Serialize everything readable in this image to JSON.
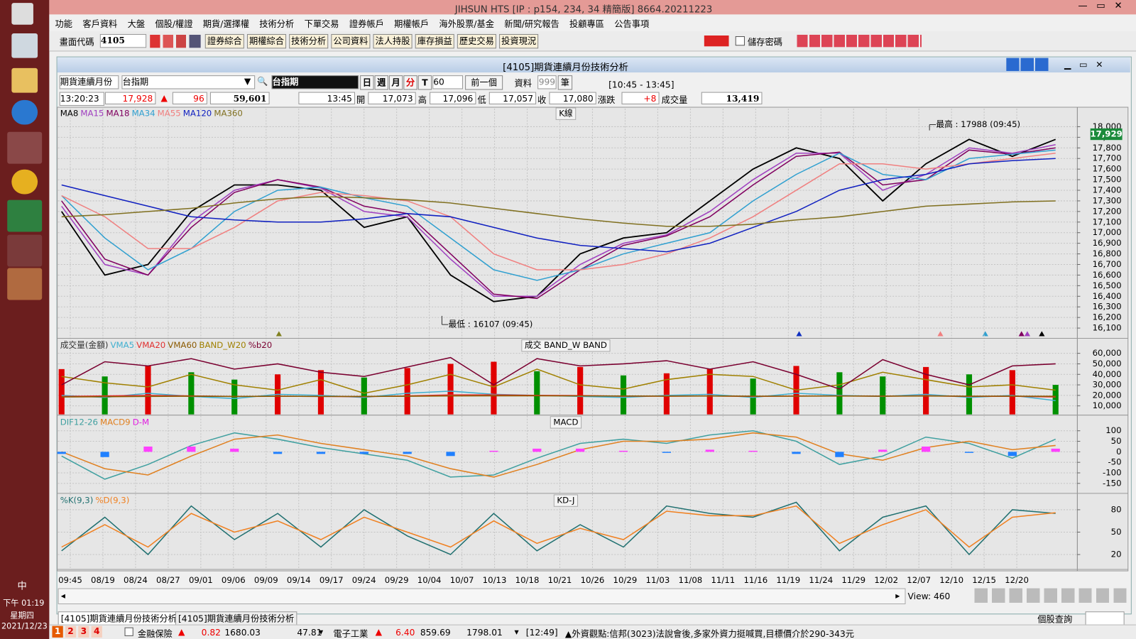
{
  "window": {
    "title": "JIHSUN HTS    [IP : p154, 234, 34 精簡版] 8664.20211223"
  },
  "menu": [
    "功能",
    "客戶資料",
    "大盤",
    "個股/權證",
    "期貨/選擇權",
    "技術分析",
    "下單交易",
    "證券帳戶",
    "期權帳戶",
    "海外股票/基金",
    "新聞/研究報告",
    "投顧專區",
    "公告事項"
  ],
  "toolbar": {
    "code_label": "畫面代碼",
    "code": "4105",
    "buttons": [
      "證券綜合",
      "期權綜合",
      "技術分析",
      "公司資料",
      "法人持股",
      "庫存損益",
      "歷史交易",
      "投資現況"
    ],
    "save_password": "儲存密碼"
  },
  "subwindow": {
    "title": "[4105]期貨連續月份技術分析"
  },
  "controls": {
    "product_type": "期貨連續月份",
    "product": "台指期",
    "symbol": "台指期",
    "periods": [
      "日",
      "週",
      "月",
      "分",
      "T"
    ],
    "minutes": "60",
    "prev": "前一個",
    "data_label": "資料",
    "data_count": "999",
    "data_unit": "筆",
    "session": "[10:45 - 13:45]"
  },
  "quote": {
    "time": "13:20:23",
    "price": "17,928",
    "change": "96",
    "volume": "59,601",
    "bar_time": "13:45",
    "open_label": "開",
    "open": "17,073",
    "high_label": "高",
    "high": "17,096",
    "low_label": "低",
    "low": "17,057",
    "close_label": "收",
    "close": "17,080",
    "change_label": "漲跌",
    "bar_change": "+8",
    "volume_label": "成交量",
    "bar_volume": "13,419"
  },
  "chart_data": [
    {
      "type": "line",
      "title": "K線",
      "ylim": [
        16010,
        18170
      ],
      "yticks": [
        {
          "value": 18000,
          "label": "18,000"
        },
        {
          "value": 17900,
          "label": "17,900"
        },
        {
          "value": 17800,
          "label": "17,800"
        },
        {
          "value": 17700,
          "label": "17,700"
        },
        {
          "value": 17600,
          "label": "17,600"
        },
        {
          "value": 17500,
          "label": "17,500"
        },
        {
          "value": 17400,
          "label": "17,400"
        },
        {
          "value": 17300,
          "label": "17,300"
        },
        {
          "value": 17200,
          "label": "17,200"
        },
        {
          "value": 17100,
          "label": "17,100"
        },
        {
          "value": 17000,
          "label": "17,000"
        },
        {
          "value": 16900,
          "label": "16,900"
        },
        {
          "value": 16800,
          "label": "16,800"
        },
        {
          "value": 16700,
          "label": "16,700"
        },
        {
          "value": 16600,
          "label": "16,600"
        },
        {
          "value": 16500,
          "label": "16,500"
        },
        {
          "value": 16400,
          "label": "16,400"
        },
        {
          "value": 16300,
          "label": "16,300"
        },
        {
          "value": 16200,
          "label": "16,200"
        },
        {
          "value": 16100,
          "label": "16,100"
        }
      ],
      "annotations": [
        "最高 : 17988 (09:45)",
        "最低 : 16107 (09:45)"
      ],
      "last_price": {
        "value": 17929,
        "label": "17,929"
      },
      "series": [
        {
          "name": "MA8",
          "color": "#000000",
          "values": [
            17200,
            16600,
            16700,
            17200,
            17450,
            17450,
            17400,
            17050,
            17150,
            16600,
            16350,
            16400,
            16800,
            16950,
            17000,
            17300,
            17600,
            17800,
            17700,
            17300,
            17650,
            17880,
            17720,
            17880
          ]
        },
        {
          "name": "MA15",
          "color": "#a040c0",
          "values": [
            17250,
            16700,
            16600,
            17100,
            17400,
            17500,
            17420,
            17200,
            17150,
            16750,
            16400,
            16400,
            16700,
            16900,
            16980,
            17200,
            17500,
            17750,
            17750,
            17400,
            17550,
            17800,
            17750,
            17830
          ]
        },
        {
          "name": "MA18",
          "color": "#800060",
          "values": [
            17300,
            16750,
            16600,
            17050,
            17380,
            17500,
            17430,
            17250,
            17180,
            16800,
            16420,
            16380,
            16650,
            16880,
            16970,
            17150,
            17450,
            17720,
            17760,
            17450,
            17500,
            17780,
            17740,
            17800
          ]
        },
        {
          "name": "MA34",
          "color": "#30a0d0",
          "values": [
            17350,
            16950,
            16650,
            16850,
            17200,
            17400,
            17430,
            17330,
            17250,
            16950,
            16650,
            16550,
            16650,
            16800,
            16900,
            17000,
            17300,
            17550,
            17750,
            17550,
            17500,
            17700,
            17740,
            17780
          ]
        },
        {
          "name": "MA55",
          "color": "#f08080",
          "values": [
            17350,
            17150,
            16850,
            16850,
            17050,
            17300,
            17380,
            17350,
            17300,
            17150,
            16800,
            16650,
            16650,
            16700,
            16800,
            16950,
            17150,
            17400,
            17650,
            17650,
            17600,
            17650,
            17700,
            17750
          ]
        },
        {
          "name": "MA120",
          "color": "#1020c0",
          "values": [
            17450,
            17350,
            17250,
            17150,
            17120,
            17100,
            17100,
            17130,
            17180,
            17150,
            17050,
            16950,
            16880,
            16850,
            16820,
            16900,
            17050,
            17200,
            17400,
            17500,
            17550,
            17650,
            17680,
            17700
          ]
        },
        {
          "name": "MA360",
          "color": "#807020",
          "values": [
            17150,
            17170,
            17200,
            17230,
            17280,
            17320,
            17340,
            17330,
            17310,
            17280,
            17230,
            17180,
            17130,
            17090,
            17060,
            17060,
            17080,
            17120,
            17150,
            17200,
            17250,
            17270,
            17290,
            17300
          ]
        }
      ]
    },
    {
      "type": "bar",
      "title": "成交  BAND_W  BAND",
      "ylim": [
        1900,
        72200
      ],
      "yticks": [
        {
          "value": 60000,
          "label": "60,000"
        },
        {
          "value": 50000,
          "label": "50,000"
        },
        {
          "value": 40000,
          "label": "40,000"
        },
        {
          "value": 30000,
          "label": "30,000"
        },
        {
          "value": 20000,
          "label": "20,000"
        },
        {
          "value": 10000,
          "label": "10,000"
        }
      ],
      "series": [
        {
          "name": "成交量(金額)",
          "style": "bar",
          "color": "#333333",
          "colors": [
            "#e00000",
            "#009000"
          ],
          "values": [
            45000,
            38000,
            48000,
            42000,
            35000,
            40000,
            44000,
            37000,
            46000,
            50000,
            52000,
            43000,
            47000,
            39000,
            41000,
            45000,
            36000,
            48000,
            42000,
            38000,
            47000,
            40000,
            44000,
            30000
          ]
        },
        {
          "name": "VMA5",
          "color": "#40b0d0",
          "values": [
            20000,
            18000,
            22000,
            19000,
            17000,
            21000,
            20000,
            18000,
            22000,
            24000,
            21000,
            20000,
            19000,
            18000,
            20000,
            21000,
            18000,
            22000,
            20000,
            19000,
            21000,
            18000,
            20000,
            15000
          ]
        },
        {
          "name": "VMA20",
          "color": "#e03030",
          "values": [
            19000,
            19500,
            20000,
            19500,
            19000,
            19200,
            19000,
            18800,
            19500,
            20500,
            20500,
            20000,
            19800,
            19200,
            19300,
            19500,
            19000,
            19400,
            19500,
            19300,
            19600,
            19000,
            19200,
            18500
          ]
        },
        {
          "name": "VMA60",
          "color": "#8b5a00",
          "values": [
            18500,
            18700,
            19000,
            19200,
            19000,
            19100,
            19000,
            19000,
            19200,
            19500,
            19600,
            19600,
            19500,
            19400,
            19300,
            19400,
            19300,
            19300,
            19400,
            19300,
            19400,
            19300,
            19300,
            19100
          ]
        },
        {
          "name": "BAND_W20",
          "color": "#a08000",
          "values": [
            38000,
            32000,
            28000,
            40000,
            30000,
            25000,
            35000,
            22000,
            30000,
            40000,
            28000,
            45000,
            30000,
            26000,
            35000,
            40000,
            38000,
            25000,
            30000,
            42000,
            35000,
            28000,
            30000,
            25000
          ]
        },
        {
          "name": "%b20",
          "color": "#7a0030",
          "values": [
            30000,
            52000,
            48000,
            55000,
            45000,
            50000,
            42000,
            38000,
            47000,
            56000,
            30000,
            55000,
            48000,
            50000,
            53000,
            45000,
            52000,
            40000,
            26000,
            54000,
            40000,
            30000,
            48000,
            50000
          ]
        }
      ]
    },
    {
      "type": "bar",
      "title": "MACD",
      "ylim": [
        -194,
        164
      ],
      "yticks": [
        100,
        50,
        0,
        -50,
        -100,
        -150
      ],
      "series": [
        {
          "name": "DIF12-26",
          "color": "#40a0a0",
          "values": [
            -20,
            -130,
            -60,
            30,
            90,
            60,
            20,
            -10,
            -40,
            -120,
            -110,
            -30,
            40,
            60,
            40,
            80,
            100,
            50,
            -60,
            -20,
            70,
            40,
            -30,
            60
          ]
        },
        {
          "name": "MACD9",
          "color": "#e08020",
          "values": [
            0,
            -80,
            -110,
            -20,
            60,
            80,
            40,
            10,
            -20,
            -80,
            -120,
            -60,
            10,
            50,
            50,
            60,
            90,
            70,
            -10,
            -40,
            20,
            50,
            10,
            30
          ]
        },
        {
          "name": "D-M",
          "style": "histogram",
          "color": "#e020e0",
          "colors": [
            "#ff40ff",
            "#2080ff"
          ],
          "values": [
            -10,
            -25,
            25,
            25,
            15,
            -10,
            -10,
            -10,
            -10,
            -20,
            5,
            15,
            15,
            5,
            -5,
            10,
            5,
            -10,
            -25,
            10,
            25,
            -5,
            -20,
            15
          ]
        }
      ]
    },
    {
      "type": "line",
      "title": "KD-J",
      "ylim": [
        1,
        99
      ],
      "yticks": [
        80,
        50,
        20
      ],
      "series": [
        {
          "name": "%K(9,3)",
          "color": "#207070",
          "values": [
            25,
            70,
            20,
            85,
            40,
            75,
            30,
            80,
            45,
            20,
            75,
            25,
            60,
            30,
            85,
            75,
            70,
            90,
            25,
            70,
            85,
            20,
            80,
            75
          ]
        },
        {
          "name": "%D(9,3)",
          "color": "#f08020",
          "values": [
            30,
            60,
            30,
            75,
            50,
            65,
            40,
            70,
            50,
            30,
            65,
            35,
            55,
            40,
            78,
            72,
            72,
            85,
            35,
            60,
            80,
            30,
            70,
            76
          ]
        }
      ]
    }
  ],
  "x_labels": [
    "09:45",
    "08/19",
    "08/24",
    "08/27",
    "09/01",
    "09/06",
    "09/09",
    "09/14",
    "09/17",
    "09/24",
    "09/29",
    "10/04",
    "10/07",
    "10/13",
    "10/18",
    "10/21",
    "10/26",
    "10/29",
    "11/03",
    "11/08",
    "11/11",
    "11/16",
    "11/19",
    "11/24",
    "11/29",
    "12/02",
    "12/07",
    "12/10",
    "12/15",
    "12/20"
  ],
  "scroll": {
    "view": "View: 460"
  },
  "tabs": [
    "[4105]期貨連續月份技術分析",
    "[4105]期貨連續月份技術分析"
  ],
  "status": {
    "query": "個股查詢",
    "pages": [
      "1",
      "2",
      "3",
      "4"
    ],
    "sector1": "金融保險",
    "sector1_change": "0.82",
    "sector1_index": "1680.03",
    "sector1_volume": "47.81",
    "sector2": "電子工業",
    "sector2_change": "6.40",
    "sector2_index": "859.69",
    "sector2_volume": "1798.01",
    "news_time": "[12:49]",
    "news": "▲外資觀點:信邦(3023)法說會後,多家外資力挺喊買,目標價介於290-343元"
  },
  "taskbar": {
    "ime": "中",
    "time": "下午 01:19",
    "weekday": "星期四",
    "date": "2021/12/23"
  }
}
